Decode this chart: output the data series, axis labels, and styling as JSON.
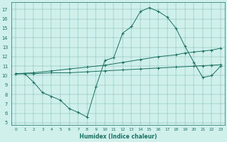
{
  "xlabel": "Humidex (Indice chaleur)",
  "bg_color": "#cff0eb",
  "line_color": "#1a7060",
  "xlim": [
    -0.5,
    23.5
  ],
  "ylim": [
    4.8,
    17.8
  ],
  "yticks": [
    5,
    6,
    7,
    8,
    9,
    10,
    11,
    12,
    13,
    14,
    15,
    16,
    17
  ],
  "xticks": [
    0,
    1,
    2,
    3,
    4,
    5,
    6,
    7,
    8,
    9,
    10,
    11,
    12,
    13,
    14,
    15,
    16,
    17,
    18,
    19,
    20,
    21,
    22,
    23
  ],
  "series": [
    {
      "x": [
        0,
        1,
        2,
        3,
        4,
        5,
        6,
        7,
        8,
        9,
        10,
        11,
        12,
        13,
        14,
        15,
        16,
        17,
        18,
        19,
        20,
        21,
        22,
        23
      ],
      "y": [
        10.2,
        10.2,
        9.3,
        8.2,
        7.8,
        7.4,
        6.5,
        6.1,
        5.6,
        8.8,
        11.6,
        11.9,
        14.5,
        15.2,
        16.8,
        17.2,
        16.8,
        16.2,
        15.0,
        13.1,
        11.4,
        9.8,
        10.0,
        11.0
      ]
    },
    {
      "x": [
        0,
        2,
        4,
        6,
        8,
        10,
        12,
        14,
        16,
        18,
        19,
        20,
        21,
        22,
        23
      ],
      "y": [
        10.2,
        10.3,
        10.5,
        10.7,
        10.9,
        11.1,
        11.4,
        11.7,
        12.0,
        12.2,
        12.4,
        12.5,
        12.6,
        12.7,
        12.9
      ]
    },
    {
      "x": [
        0,
        2,
        4,
        6,
        8,
        10,
        12,
        14,
        16,
        18,
        20,
        21,
        22,
        23
      ],
      "y": [
        10.2,
        10.2,
        10.3,
        10.3,
        10.4,
        10.5,
        10.6,
        10.7,
        10.8,
        10.9,
        11.0,
        11.05,
        11.1,
        11.15
      ]
    }
  ]
}
